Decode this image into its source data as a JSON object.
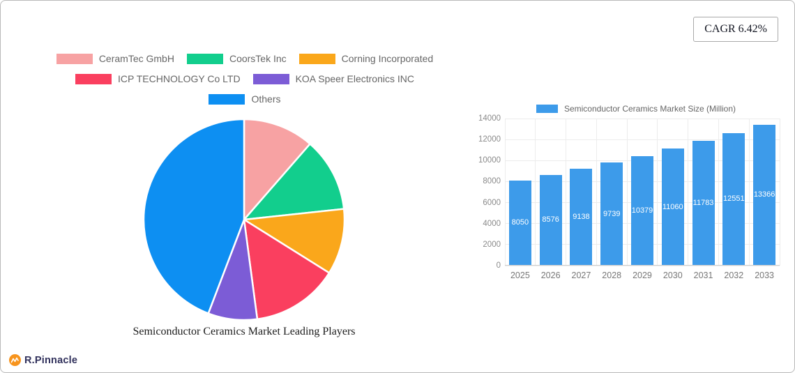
{
  "badge": {
    "label": "CAGR 6.42%"
  },
  "brand": {
    "name": "R.Pinnacle"
  },
  "chart_data": [
    {
      "type": "pie",
      "title": "Semiconductor Ceramics Market Leading Players",
      "labels": [
        "CeramTec GmbH",
        "CoorsTek Inc",
        "Corning Incorporated",
        "ICP TECHNOLOGY Co LTD",
        "KOA Speer Electronics INC",
        "Others"
      ],
      "values": [
        11.4,
        11.9,
        10.6,
        14.0,
        7.9,
        44.2
      ],
      "colors": [
        "#F7A2A3",
        "#12CE8D",
        "#FAA71B",
        "#FA3F5F",
        "#7C5CD6",
        "#0D8FF2"
      ],
      "legend_rows": [
        [
          0,
          1,
          2
        ],
        [
          3,
          4
        ],
        [
          5
        ]
      ],
      "start_angle_deg": 0,
      "direction": "clockwise",
      "slice_gap_color": "#ffffff"
    },
    {
      "type": "bar",
      "legend_label": "Semiconductor Ceramics Market Size (Million)",
      "categories": [
        "2025",
        "2026",
        "2027",
        "2028",
        "2029",
        "2030",
        "2031",
        "2032",
        "2033"
      ],
      "values": [
        8050,
        8576,
        9138,
        9739,
        10379,
        11060,
        11783,
        12551,
        13366
      ],
      "bar_color": "#3D9BEA",
      "value_label_color": "#ffffff",
      "ylim": [
        0,
        14000
      ],
      "yticks": [
        0,
        2000,
        4000,
        6000,
        8000,
        10000,
        12000,
        14000
      ],
      "grid": true,
      "legend_position": "top"
    }
  ]
}
